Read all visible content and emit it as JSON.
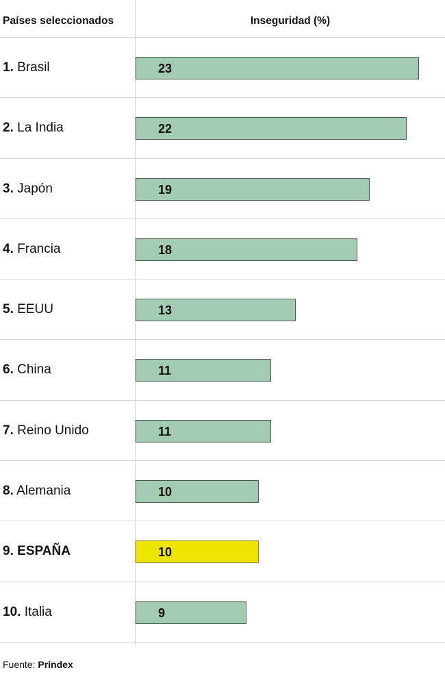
{
  "header": {
    "countries_label": "Países seleccionados",
    "value_label": "Inseguridad (%)"
  },
  "source": {
    "prefix": "Fuente:",
    "name": "Prindex"
  },
  "colors": {
    "bar": "#a3cbb4",
    "highlight": "#ede500",
    "divider": "#d4d4d4"
  },
  "chart_data": {
    "type": "bar",
    "orientation": "horizontal",
    "categories": [
      "1. Brasil",
      "2. La India",
      "3. Japón",
      "4. Francia",
      "5. EEUU",
      "6. China",
      "7. Reino Unido",
      "8. Alemania",
      "9. ESPAÑA",
      "10. Italia"
    ],
    "values": [
      23,
      22,
      19,
      18,
      13,
      11,
      11,
      10,
      10,
      9
    ],
    "highlighted_category": "9. ESPAÑA",
    "xlim": [
      0,
      25
    ],
    "rows": [
      {
        "rank": "1.",
        "name": "Brasil",
        "value": 23,
        "highlight": false
      },
      {
        "rank": "2.",
        "name": "La India",
        "value": 22,
        "highlight": false
      },
      {
        "rank": "3.",
        "name": "Japón",
        "value": 19,
        "highlight": false
      },
      {
        "rank": "4.",
        "name": "Francia",
        "value": 18,
        "highlight": false
      },
      {
        "rank": "5.",
        "name": "EEUU",
        "value": 13,
        "highlight": false
      },
      {
        "rank": "6.",
        "name": "China",
        "value": 11,
        "highlight": false
      },
      {
        "rank": "7.",
        "name": "Reino Unido",
        "value": 11,
        "highlight": false
      },
      {
        "rank": "8.",
        "name": "Alemania",
        "value": 10,
        "highlight": false
      },
      {
        "rank": "9.",
        "name": "ESPAÑA",
        "value": 10,
        "highlight": true
      },
      {
        "rank": "10.",
        "name": "Italia",
        "value": 9,
        "highlight": false
      }
    ]
  }
}
